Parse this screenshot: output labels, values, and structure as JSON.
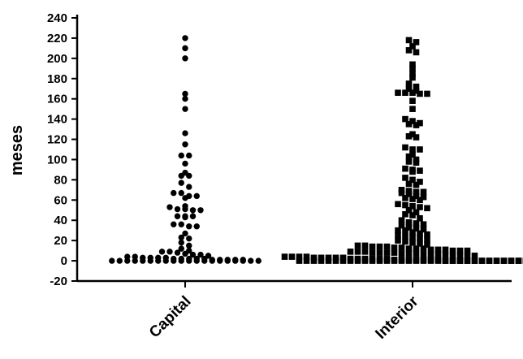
{
  "chart_data": {
    "type": "scatter",
    "ylabel": "meses",
    "xlabel": "",
    "categories": [
      "Capital",
      "Interior"
    ],
    "ylim": [
      -20,
      240
    ],
    "yticks": [
      -20,
      0,
      20,
      40,
      60,
      80,
      100,
      120,
      140,
      160,
      180,
      200,
      220,
      240
    ],
    "grid": false,
    "legend": "none",
    "markers": {
      "Capital": "circle",
      "Interior": "square"
    },
    "color": "#000000",
    "series": [
      {
        "values": [
          220,
          210,
          200,
          165,
          160,
          150,
          126,
          115,
          104,
          104,
          96,
          87,
          84,
          84,
          77,
          73,
          67,
          67,
          64,
          64,
          62,
          54,
          53,
          51,
          51,
          50,
          50,
          44,
          44,
          44,
          43,
          36,
          36,
          34,
          34,
          27,
          23,
          22,
          18,
          15,
          12,
          10,
          9,
          9,
          8,
          7,
          6,
          6,
          5,
          4,
          4,
          3,
          3,
          3,
          3,
          2,
          2,
          2,
          2,
          2,
          1,
          1,
          1,
          1,
          1,
          0,
          0,
          0,
          0,
          0,
          0,
          0,
          0,
          0,
          0,
          0,
          0,
          0,
          0,
          0,
          0,
          0,
          0,
          0,
          0
        ]
      },
      {
        "values": [
          218,
          216,
          212,
          208,
          206,
          194,
          190,
          185,
          181,
          175,
          172,
          170,
          168,
          166,
          166,
          166,
          165,
          165,
          158,
          150,
          140,
          138,
          136,
          135,
          134,
          125,
          123,
          122,
          112,
          110,
          110,
          105,
          103,
          100,
          98,
          97,
          91,
          90,
          89,
          88,
          82,
          80,
          78,
          76,
          75,
          70,
          69,
          68,
          68,
          67,
          66,
          64,
          63,
          62,
          61,
          60,
          56,
          55,
          54,
          53,
          52,
          50,
          48,
          46,
          45,
          42,
          40,
          38,
          37,
          36,
          35,
          33,
          32,
          31,
          30,
          30,
          28,
          27,
          26,
          25,
          24,
          23,
          22,
          21,
          20,
          19,
          18,
          17,
          16,
          15,
          15,
          14,
          14,
          14,
          13,
          13,
          12,
          12,
          12,
          11,
          11,
          11,
          10,
          10,
          10,
          9,
          9,
          9,
          8,
          8,
          8,
          8,
          7,
          7,
          7,
          6,
          6,
          6,
          6,
          5,
          5,
          5,
          5,
          4,
          4,
          4,
          4,
          3,
          3,
          3,
          3,
          3,
          2,
          2,
          2,
          2,
          2,
          2,
          1,
          1,
          1,
          1,
          1,
          1,
          1,
          0,
          0,
          0,
          0,
          0,
          0,
          0,
          0,
          0,
          0,
          0,
          0,
          0,
          0,
          0,
          0,
          0,
          0,
          0,
          0,
          0,
          0,
          0,
          0,
          0,
          0,
          0,
          0,
          0,
          0,
          0,
          0,
          0,
          0,
          0,
          0,
          0,
          0,
          0,
          0,
          0,
          0,
          0,
          0,
          0,
          0
        ]
      }
    ]
  }
}
